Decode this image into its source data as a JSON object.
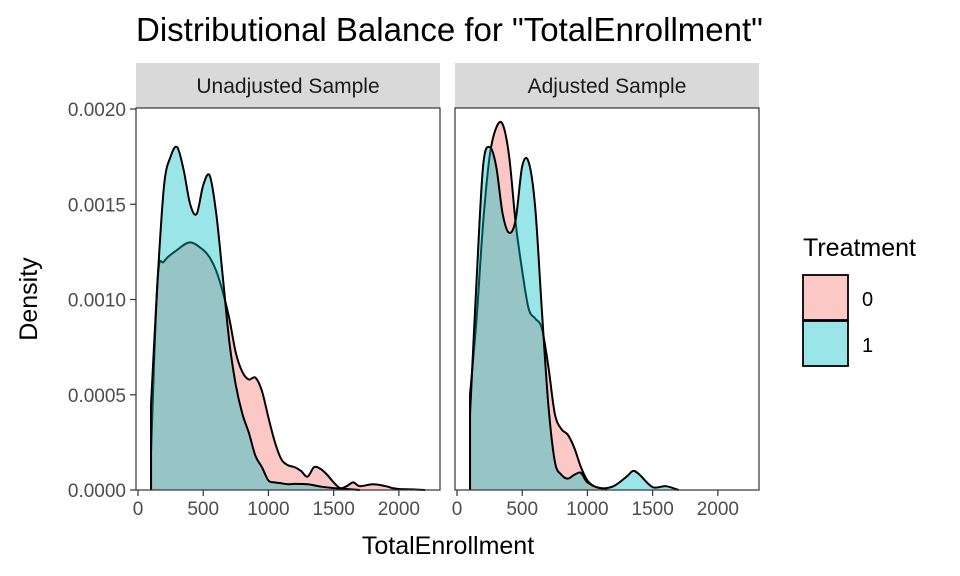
{
  "chart_data": {
    "type": "area",
    "title": "Distributional Balance for \"TotalEnrollment\"",
    "xlabel": "TotalEnrollment",
    "ylabel": "Density",
    "xlim": [
      0,
      2300
    ],
    "ylim": [
      0,
      0.002
    ],
    "x_ticks": [
      0,
      500,
      1000,
      1500,
      2000
    ],
    "y_ticks": [
      0,
      0.0005,
      0.001,
      0.0015,
      0.002
    ],
    "x_tick_labels": [
      "0",
      "500",
      "1000",
      "1500",
      "2000"
    ],
    "y_tick_labels": [
      "0.0000",
      "0.0005",
      "0.0010",
      "0.0015",
      "0.0020"
    ],
    "grid": false,
    "legend": {
      "title": "Treatment",
      "position": "right",
      "entries": [
        {
          "label": "0",
          "color": "#F8766D"
        },
        {
          "label": "1",
          "color": "#00BFC4"
        }
      ]
    },
    "panels": [
      {
        "strip": "Unadjusted Sample",
        "series": [
          {
            "group": "0",
            "color": "#F8766D",
            "x": [
              100,
              150,
              200,
              300,
              400,
              500,
              550,
              600,
              650,
              700,
              750,
              800,
              850,
              900,
              950,
              1000,
              1050,
              1100,
              1150,
              1200,
              1250,
              1300,
              1350,
              1400,
              1450,
              1500,
              1550,
              1600,
              1650,
              1700,
              1800,
              1900,
              1950,
              2000,
              2100,
              2200
            ],
            "y": [
              0.0002,
              0.0011,
              0.0012,
              0.00126,
              0.0013,
              0.00126,
              0.00122,
              0.00115,
              0.00104,
              0.0009,
              0.00072,
              0.00062,
              0.00058,
              0.00059,
              0.00052,
              0.00038,
              0.00025,
              0.00016,
              0.00013,
              0.00012,
              0.0001,
              7e-05,
              0.00012,
              0.00011,
              8e-05,
              4e-05,
              1e-05,
              2e-05,
              4e-05,
              2e-05,
              3e-05,
              2e-05,
              1e-05,
              5e-06,
              3e-06,
              0
            ]
          },
          {
            "group": "1",
            "color": "#00BFC4",
            "x": [
              100,
              150,
              200,
              250,
              300,
              350,
              400,
              450,
              500,
              550,
              600,
              650,
              700,
              750,
              800,
              850,
              900,
              950,
              1000,
              1050,
              1100,
              1150,
              1200,
              1300,
              1400,
              1500,
              1600,
              1700
            ],
            "y": [
              0.00045,
              0.0011,
              0.0016,
              0.00175,
              0.0018,
              0.00168,
              0.0015,
              0.00145,
              0.0016,
              0.00165,
              0.00145,
              0.00112,
              0.00078,
              0.00055,
              0.0004,
              0.0003,
              0.00018,
              0.00012,
              5e-05,
              4e-05,
              3.5e-05,
              3e-05,
              3.2e-05,
              3e-05,
              1.8e-05,
              1e-05,
              5e-06,
              0
            ]
          }
        ]
      },
      {
        "strip": "Adjusted Sample",
        "series": [
          {
            "group": "0",
            "color": "#F8766D",
            "x": [
              100,
              150,
              200,
              250,
              300,
              350,
              400,
              450,
              500,
              550,
              600,
              650,
              700,
              750,
              800,
              850,
              900,
              950,
              1000,
              1050,
              1100,
              1150
            ],
            "y": [
              0.0005,
              0.0009,
              0.0014,
              0.00175,
              0.0019,
              0.00192,
              0.00175,
              0.0014,
              0.00115,
              0.00095,
              0.0009,
              0.00085,
              0.00065,
              0.0004,
              0.00032,
              0.00029,
              0.00022,
              0.00012,
              5e-05,
              2e-05,
              1e-05,
              0
            ]
          },
          {
            "group": "1",
            "color": "#00BFC4",
            "x": [
              100,
              150,
              200,
              250,
              300,
              350,
              400,
              450,
              500,
              550,
              600,
              650,
              700,
              750,
              800,
              850,
              900,
              950,
              1000,
              1100,
              1200,
              1300,
              1350,
              1400,
              1500,
              1600,
              1700
            ],
            "y": [
              0.0004,
              0.0011,
              0.0017,
              0.0018,
              0.0017,
              0.00145,
              0.00135,
              0.00142,
              0.0017,
              0.00172,
              0.00148,
              0.00095,
              0.00045,
              0.00015,
              8e-05,
              6e-05,
              8e-05,
              9e-05,
              4e-05,
              1e-05,
              2e-05,
              7e-05,
              0.0001,
              8e-05,
              1.5e-05,
              2e-05,
              0
            ]
          }
        ]
      }
    ]
  }
}
